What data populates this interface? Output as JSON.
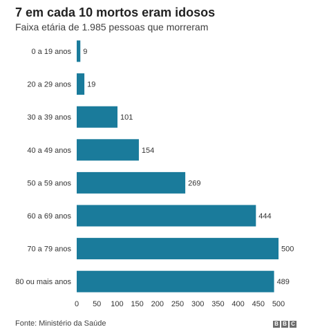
{
  "title": "7 em cada 10 mortos eram idosos",
  "subtitle": "Faixa etária de 1.985 pessoas que morreram",
  "source": "Fonte: Ministério da Saúde",
  "logo": {
    "text": "BBC",
    "letters": [
      "B",
      "B",
      "C"
    ],
    "color": "#6b6b6b"
  },
  "chart_data": {
    "type": "bar",
    "orientation": "horizontal",
    "categories": [
      "0 a 19 anos",
      "20 a 29 anos",
      "30 a 39 anos",
      "40 a 49 anos",
      "50 a 59 anos",
      "60 a 69 anos",
      "70 a 79 anos",
      "80 ou mais anos"
    ],
    "values": [
      9,
      19,
      101,
      154,
      269,
      444,
      500,
      489
    ],
    "data_labels": [
      "9",
      "19",
      "101",
      "154",
      "269",
      "444",
      "500",
      "489"
    ],
    "xlim": [
      0,
      500
    ],
    "xticks": [
      0,
      50,
      100,
      150,
      200,
      250,
      300,
      350,
      400,
      450,
      500
    ],
    "xlabel": "",
    "ylabel": "",
    "bar_color": "#1a7b9b",
    "grid": false,
    "legend": "none"
  }
}
